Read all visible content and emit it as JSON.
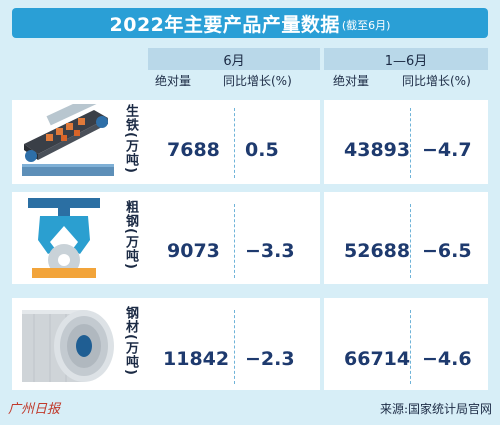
{
  "header": {
    "title": "2022年主要产品产量数据",
    "subtitle": "(截至6月)"
  },
  "periods": [
    "6月",
    "1—6月"
  ],
  "columns": {
    "absolute": "绝对量",
    "yoy": "同比增长(%)"
  },
  "rows": [
    {
      "label": "生铁(万吨)",
      "icon": "conveyor-belt-icon",
      "june_absolute": "7688",
      "june_yoy": "0.5",
      "ytd_absolute": "43893",
      "ytd_yoy": "−4.7"
    },
    {
      "label": "粗钢(万吨)",
      "icon": "crane-claw-icon",
      "june_absolute": "9073",
      "june_yoy": "−3.3",
      "ytd_absolute": "52688",
      "ytd_yoy": "−6.5"
    },
    {
      "label": "钢材(万吨)",
      "icon": "steel-coil-icon",
      "june_absolute": "11842",
      "june_yoy": "−2.3",
      "ytd_absolute": "66714",
      "ytd_yoy": "−4.6"
    }
  ],
  "footer": {
    "logo": "广州日报",
    "source": "来源:国家统计局官网"
  },
  "colors": {
    "background": "#d7eef7",
    "title_bar": "#2a9fd6",
    "period_header": "#b9d8e9",
    "value_text": "#1e3a6e"
  }
}
